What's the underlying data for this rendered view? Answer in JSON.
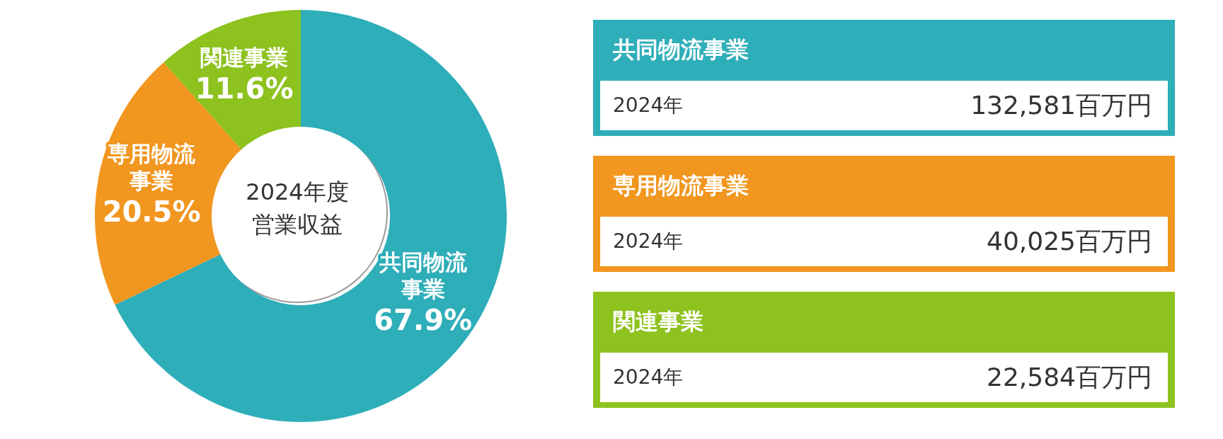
{
  "chart_data": [
    {
      "type": "donut",
      "title": "2024年度営業収益",
      "categories": [
        "共同物流事業",
        "専用物流事業",
        "関連事業"
      ],
      "values": [
        67.9,
        20.5,
        11.6
      ],
      "colors": [
        "#2eaeb9",
        "#f1961f",
        "#8dc21f"
      ],
      "value_labels": [
        "67.9%",
        "20.5%",
        "11.6%"
      ],
      "legend": false
    },
    {
      "type": "other",
      "categories": [
        "共同物流事業",
        "専用物流事業",
        "関連事業"
      ],
      "colors": [
        "#2eaeb9",
        "#f1961f",
        "#8dc21f"
      ],
      "annotations": [
        "2024年",
        "2024年",
        "2024年"
      ],
      "value_labels": [
        "132,581百万円",
        "40,025百万円",
        "22,584百万円"
      ]
    }
  ]
}
